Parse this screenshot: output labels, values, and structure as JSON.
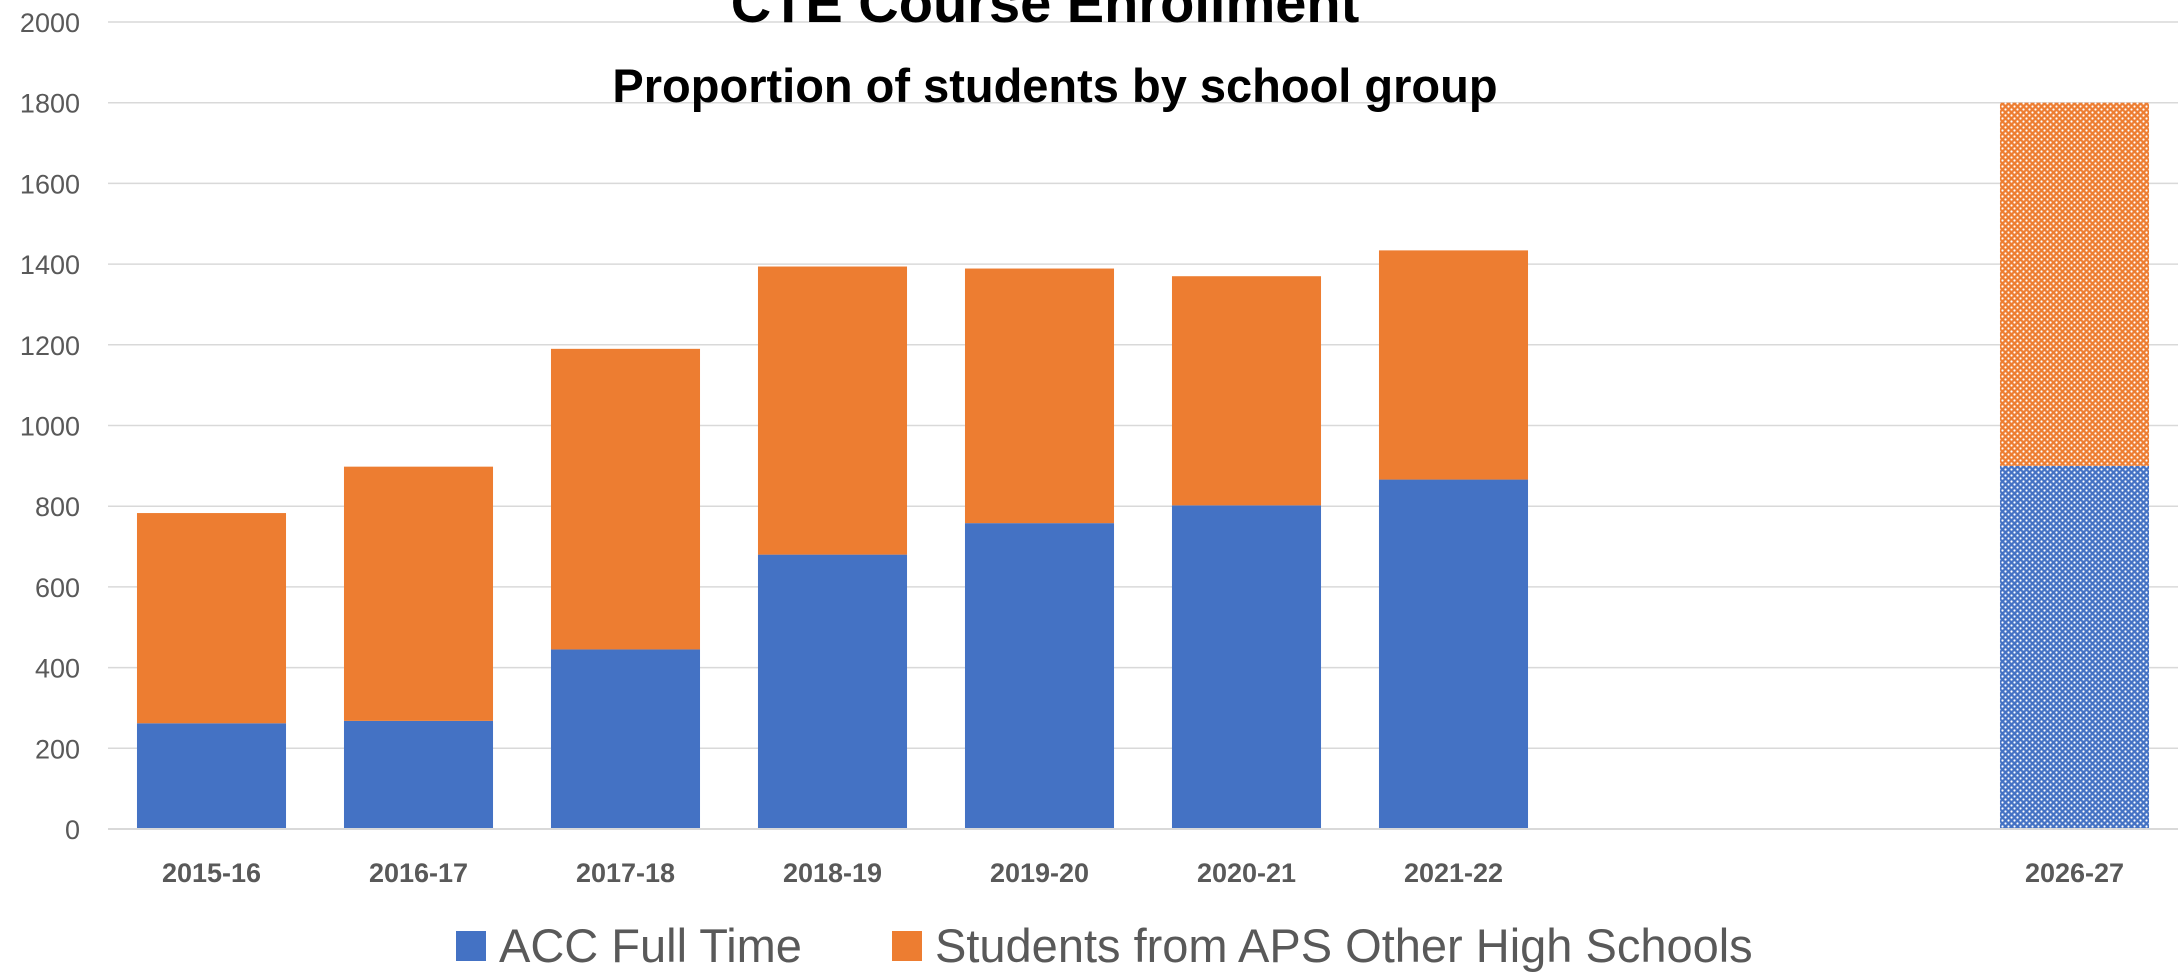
{
  "chart_data": {
    "type": "bar",
    "stacked": true,
    "title": "CTE Course Enrollment",
    "subtitle": "Proportion of students by school group",
    "categories": [
      "2015-16",
      "2016-17",
      "2017-18",
      "2018-19",
      "2019-20",
      "2020-21",
      "2021-22",
      "",
      "",
      "2026-27"
    ],
    "series": [
      {
        "name": "ACC Full Time",
        "color": "#4472C4",
        "values": [
          262,
          268,
          445,
          680,
          758,
          802,
          866,
          null,
          null,
          900
        ]
      },
      {
        "name": "Students from APS Other High Schools",
        "color": "#ED7D31",
        "values": [
          521,
          630,
          745,
          714,
          631,
          568,
          568,
          null,
          null,
          900
        ]
      }
    ],
    "patterned_categories": [
      "2026-27"
    ],
    "ylim": [
      0,
      2000
    ],
    "yticks": [
      "0",
      "200",
      "400",
      "600",
      "800",
      "1000",
      "1200",
      "1400",
      "1600",
      "1800",
      "2000"
    ],
    "xlabel": "",
    "ylabel": "",
    "grid": true,
    "legend": "bottom"
  }
}
